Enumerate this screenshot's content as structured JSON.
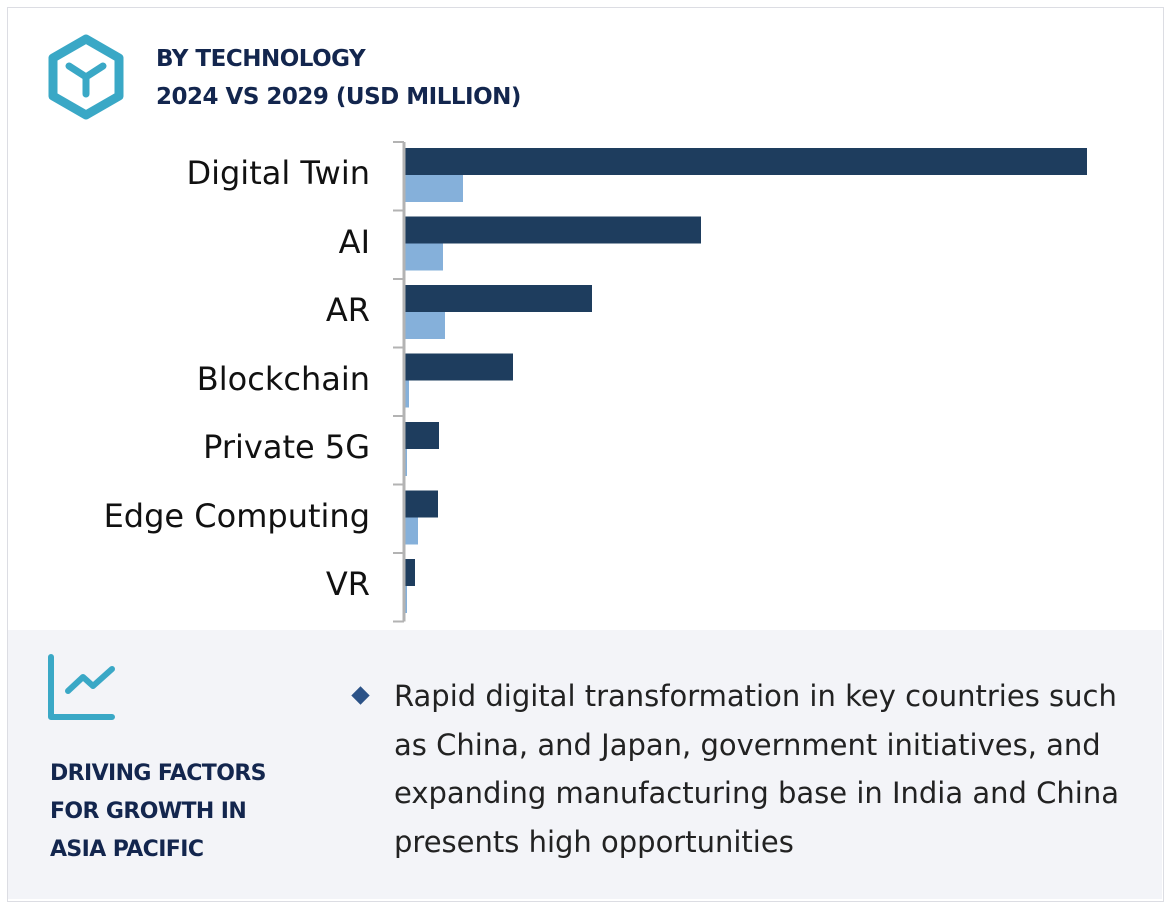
{
  "header": {
    "title_line1": "BY TECHNOLOGY",
    "title_line2": "2024 VS 2029 (USD MILLION)",
    "icon": "hexagon-y-icon"
  },
  "chart_data": {
    "type": "bar",
    "orientation": "horizontal",
    "title": "BY TECHNOLOGY 2024 VS 2029 (USD MILLION)",
    "categories": [
      "Digital Twin",
      "AI",
      "AR",
      "Blockchain",
      "Private 5G",
      "Edge Computing",
      "VR"
    ],
    "series": [
      {
        "values": [
          683,
          297,
          188,
          109,
          35,
          34,
          11
        ],
        "color": "#1e3d5e"
      },
      {
        "values": [
          59,
          39,
          41,
          5,
          3,
          14,
          3
        ],
        "color": "#85b0da"
      }
    ],
    "xlim": [
      0,
      700
    ],
    "value_scale": "relative (no axis values printed)",
    "grid": false,
    "legend": "none"
  },
  "factors": {
    "icon": "trend-chart-icon",
    "heading_lines": [
      "DRIVING FACTORS",
      "FOR GROWTH IN",
      "ASIA PACIFIC"
    ],
    "bullets": [
      "Rapid digital transformation in key countries such as China, and Japan, government initiatives, and expanding manufacturing base in India and China presents high opportunities"
    ]
  },
  "colors": {
    "accent": "#3aa8c6",
    "navy": "#13264e",
    "panel_bg": "#f3f4f8"
  }
}
